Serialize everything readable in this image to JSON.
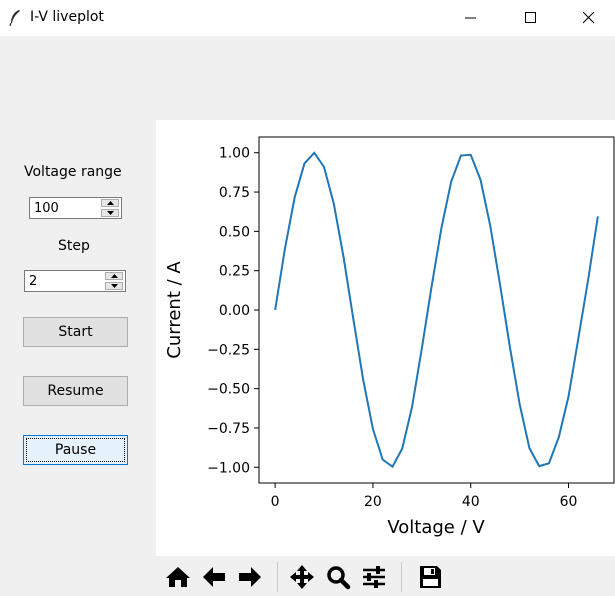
{
  "window": {
    "title": "I-V liveplot",
    "icon": "feather-icon",
    "controls": [
      "minimize-icon",
      "maximize-icon",
      "close-icon"
    ]
  },
  "controls": {
    "voltage_range_label": "Voltage range",
    "voltage_range_value": "100",
    "step_label": "Step",
    "step_value": "2",
    "start_label": "Start",
    "resume_label": "Resume",
    "pause_label": "Pause"
  },
  "toolbar": {
    "items": [
      "home-icon",
      "back-icon",
      "forward-icon",
      "pan-icon",
      "zoom-icon",
      "configure-subplots-icon",
      "save-icon"
    ]
  },
  "chart_data": {
    "type": "line",
    "title": "",
    "xlabel": "Voltage / V",
    "ylabel": "Current / A",
    "xlim": [
      -3.3,
      69.3
    ],
    "ylim": [
      -1.1,
      1.1
    ],
    "xticks": [
      0,
      20,
      40,
      60
    ],
    "xtick_labels": [
      "0",
      "20",
      "40",
      "60"
    ],
    "yticks": [
      1.0,
      0.75,
      0.5,
      0.25,
      0.0,
      -0.25,
      -0.5,
      -0.75,
      -1.0
    ],
    "ytick_labels": [
      "1.00",
      "0.75",
      "0.50",
      "0.25",
      "0.00",
      "−0.25",
      "−0.50",
      "−0.75",
      "−1.00"
    ],
    "grid": false,
    "color": "#1f77b4",
    "series": [
      {
        "x": [
          0,
          2,
          4,
          6,
          8,
          10,
          12,
          14,
          16,
          18,
          20,
          22,
          24,
          26,
          28,
          30,
          32,
          34,
          36,
          38,
          40,
          42,
          44,
          46,
          48,
          50,
          52,
          54,
          56,
          58,
          60,
          62,
          64,
          66
        ],
        "values": [
          0.0,
          0.3894,
          0.7174,
          0.932,
          0.9996,
          0.9093,
          0.6755,
          0.335,
          -0.0584,
          -0.4425,
          -0.7568,
          -0.9516,
          -0.9962,
          -0.8805,
          -0.616,
          -0.2445,
          0.1499,
          0.5202,
          0.8155,
          0.9822,
          0.987,
          0.8284,
          0.5346,
          0.1602,
          -0.2339,
          -0.5981,
          -0.8784,
          -0.9928,
          -0.9746,
          -0.8099,
          -0.55,
          -0.182,
          0.19,
          0.5951
        ]
      }
    ]
  }
}
